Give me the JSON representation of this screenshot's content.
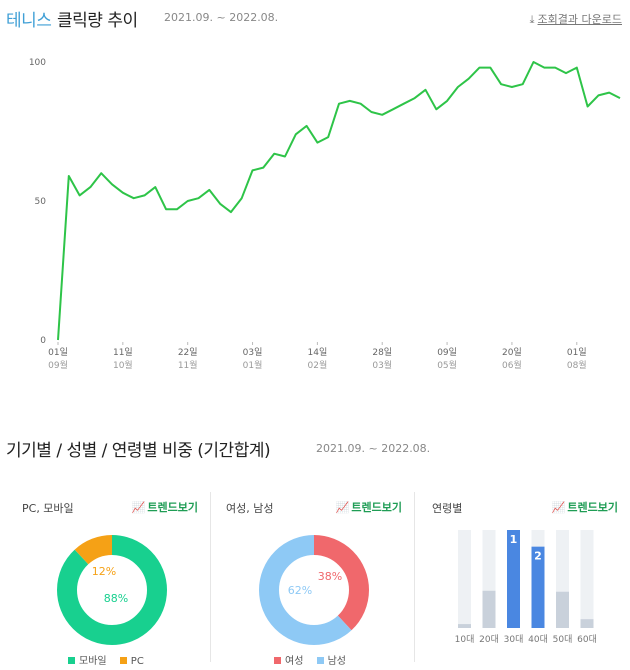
{
  "header": {
    "keyword": "테니스",
    "title_suffix": "클릭량 추이",
    "period": "2021.09. ~ 2022.08.",
    "download_label": "조회결과 다운로드"
  },
  "section2": {
    "title": "기기별 / 성별 / 연령별 비중 (기간합계)",
    "period": "2021.09. ~ 2022.08."
  },
  "trend_label": "트렌드보기",
  "colors": {
    "line": "#2ec448",
    "mobile": "#18d08f",
    "pc": "#f5a116",
    "female": "#f0686c",
    "male": "#8ec9f5",
    "age_bar": "#4a87e1",
    "age_bg": "#eef1f4",
    "age_low": "#c9d1db"
  },
  "chart_data": [
    {
      "type": "line",
      "title": "",
      "xlabel": "",
      "ylabel": "",
      "ylim": [
        0,
        100
      ],
      "yticks": [
        "0",
        "50",
        "100"
      ],
      "grid": false,
      "x_ticks": [
        {
          "day": "01일",
          "month": "09월",
          "index": 0
        },
        {
          "day": "11일",
          "month": "10월",
          "index": 6
        },
        {
          "day": "22일",
          "month": "11월",
          "index": 12
        },
        {
          "day": "03일",
          "month": "01월",
          "index": 18
        },
        {
          "day": "14일",
          "month": "02월",
          "index": 24
        },
        {
          "day": "28일",
          "month": "03월",
          "index": 30
        },
        {
          "day": "09일",
          "month": "05월",
          "index": 36
        },
        {
          "day": "20일",
          "month": "06월",
          "index": 42
        },
        {
          "day": "01일",
          "month": "08월",
          "index": 48
        }
      ],
      "series": [
        {
          "values": [
            0,
            59,
            52,
            55,
            60,
            56,
            53,
            51,
            52,
            55,
            47,
            47,
            50,
            51,
            54,
            49,
            46,
            51,
            61,
            62,
            67,
            66,
            74,
            77,
            71,
            73,
            85,
            86,
            85,
            82,
            81,
            83,
            85,
            87,
            90,
            83,
            86,
            91,
            94,
            98,
            98,
            92,
            91,
            92,
            100,
            98,
            98,
            96,
            98,
            84,
            88,
            89,
            87
          ]
        }
      ]
    },
    {
      "type": "pie",
      "title": "PC, 모바일",
      "slices": [
        {
          "name": "모바일",
          "value": 88,
          "label": "88%"
        },
        {
          "name": "PC",
          "value": 12,
          "label": "12%"
        }
      ]
    },
    {
      "type": "pie",
      "title": "여성, 남성",
      "slices": [
        {
          "name": "여성",
          "value": 38,
          "label": "38%"
        },
        {
          "name": "남성",
          "value": 62,
          "label": "62%"
        }
      ]
    },
    {
      "type": "bar",
      "title": "연령별",
      "categories": [
        "10대",
        "20대",
        "30대",
        "40대",
        "50대",
        "60대"
      ],
      "values": [
        4,
        38,
        100,
        83,
        37,
        9
      ],
      "ranks": [
        "",
        "",
        "1",
        "2",
        "",
        ""
      ],
      "ylim": [
        0,
        100
      ]
    }
  ]
}
